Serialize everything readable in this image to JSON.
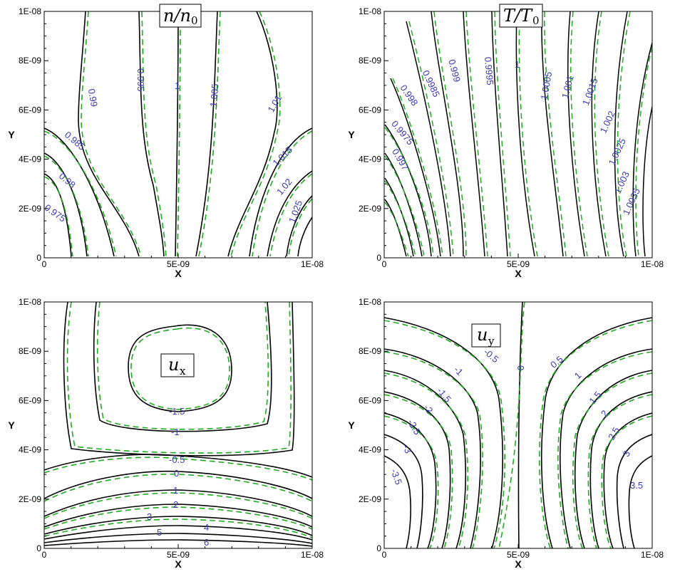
{
  "figure": {
    "x_axis": {
      "label": "X",
      "ticks": [
        "0",
        "5E-09",
        "1E-08"
      ],
      "range": [
        0,
        1e-08
      ]
    },
    "y_axis": {
      "label": "Y",
      "ticks": [
        "0",
        "2E-09",
        "4E-09",
        "6E-09",
        "8E-09",
        "1E-08"
      ],
      "range": [
        0,
        1e-08
      ]
    },
    "colors": {
      "solid_contour": "#000000",
      "dashed_contour": "#22aa22",
      "contour_label": "#3b3bb5"
    }
  },
  "chart_data": [
    {
      "type": "contour",
      "title": "n/n0",
      "title_main": "n/n",
      "title_sub": "0",
      "xlim": [
        0,
        1e-08
      ],
      "ylim": [
        0,
        1e-08
      ],
      "line_styles": [
        "solid",
        "dashed"
      ],
      "levels": [
        "0.975",
        "0.98",
        "0.985",
        "0.99",
        "0.995",
        "1",
        "1.005",
        "1.01",
        "1.015",
        "1.02",
        "1.025"
      ]
    },
    {
      "type": "contour",
      "title": "T/T0",
      "title_main": "T/T",
      "title_sub": "0",
      "xlim": [
        0,
        1e-08
      ],
      "ylim": [
        0,
        1e-08
      ],
      "line_styles": [
        "solid",
        "dashed"
      ],
      "levels": [
        "0.997",
        "0.9975",
        "0.998",
        "0.9985",
        "0.999",
        "0.9995",
        "1",
        "1.0005",
        "1.001",
        "1.0015",
        "1.002",
        "1.0025",
        "1.003",
        "1.0035"
      ]
    },
    {
      "type": "contour",
      "title": "ux",
      "title_main": "u",
      "title_sub": "x",
      "xlim": [
        0,
        1e-08
      ],
      "ylim": [
        0,
        1e-08
      ],
      "line_styles": [
        "solid",
        "dashed"
      ],
      "levels": [
        "-1.5",
        "-1",
        "-0.5",
        "0",
        "1",
        "2",
        "3",
        "4",
        "5",
        "6"
      ]
    },
    {
      "type": "contour",
      "title": "uy",
      "title_main": "u",
      "title_sub": "y",
      "xlim": [
        0,
        1e-08
      ],
      "ylim": [
        0,
        1e-08
      ],
      "line_styles": [
        "solid",
        "dashed"
      ],
      "levels": [
        "-3.5",
        "-3",
        "-2.5",
        "-2",
        "-1.5",
        "-1",
        "-0.5",
        "0",
        "0.5",
        "1",
        "1.5",
        "2",
        "2.5",
        "3",
        "3.5"
      ]
    }
  ]
}
